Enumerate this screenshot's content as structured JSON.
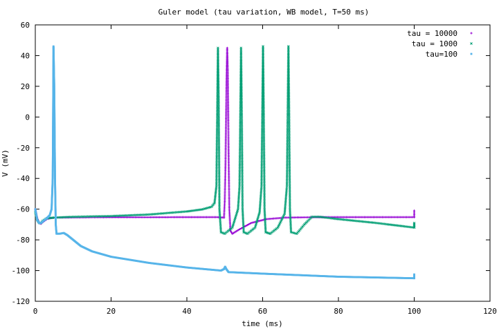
{
  "chart_data": {
    "type": "scatter",
    "title": "Guler model (tau variation, WB model, T=50 ms)",
    "xlabel": "time (ms)",
    "ylabel": "V (mV)",
    "xlim": [
      0,
      120
    ],
    "ylim": [
      -120,
      60
    ],
    "xticks": [
      0,
      20,
      40,
      60,
      80,
      100,
      120
    ],
    "yticks": [
      -120,
      -100,
      -80,
      -60,
      -40,
      -20,
      0,
      20,
      40,
      60
    ],
    "grid": false,
    "legend_position": "top-right",
    "series": [
      {
        "name": "tau = 10000",
        "color": "#9400d3",
        "marker": "plus",
        "segments": [
          [
            [
              0,
              -60
            ],
            [
              0.5,
              -66
            ],
            [
              1,
              -69
            ],
            [
              1.5,
              -69.5
            ],
            [
              2,
              -68.5
            ],
            [
              3,
              -66.5
            ],
            [
              4,
              -65.8
            ],
            [
              6,
              -65.5
            ],
            [
              10,
              -65.4
            ],
            [
              20,
              -65.3
            ],
            [
              30,
              -65.3
            ],
            [
              40,
              -65.2
            ],
            [
              48,
              -65.2
            ],
            [
              49.8,
              -65.5
            ]
          ],
          [
            [
              49.8,
              -65.5
            ],
            [
              50.0,
              -55
            ],
            [
              50.2,
              -30
            ],
            [
              50.35,
              0
            ],
            [
              50.5,
              30
            ],
            [
              50.65,
              45
            ],
            [
              50.8,
              30
            ],
            [
              51.0,
              -20
            ],
            [
              51.2,
              -60
            ],
            [
              51.5,
              -74
            ],
            [
              52,
              -76
            ],
            [
              54,
              -73
            ],
            [
              57,
              -69
            ],
            [
              61,
              -66.5
            ],
            [
              66,
              -65.5
            ],
            [
              75,
              -65.2
            ],
            [
              90,
              -65.2
            ],
            [
              100,
              -65.2
            ]
          ],
          [
            [
              100,
              -65.2
            ],
            [
              100,
              -61
            ]
          ]
        ]
      },
      {
        "name": "tau = 1000",
        "color": "#009e73",
        "marker": "cross",
        "segments": [
          [
            [
              0,
              -62
            ],
            [
              0.5,
              -67
            ],
            [
              1,
              -69
            ],
            [
              1.5,
              -69
            ],
            [
              2,
              -67.5
            ],
            [
              3,
              -66
            ],
            [
              5,
              -65.5
            ],
            [
              10,
              -65
            ],
            [
              20,
              -64.5
            ],
            [
              30,
              -63.5
            ],
            [
              40,
              -61.5
            ],
            [
              44,
              -60.2
            ],
            [
              46.5,
              -58.5
            ],
            [
              47.3,
              -56
            ],
            [
              47.8,
              -45
            ],
            [
              48,
              0
            ],
            [
              48.2,
              45
            ],
            [
              48.4,
              10
            ],
            [
              48.6,
              -60
            ],
            [
              49,
              -75
            ],
            [
              50,
              -76
            ],
            [
              52,
              -72
            ],
            [
              53.5,
              -60
            ],
            [
              53.9,
              -45
            ],
            [
              54.1,
              0
            ],
            [
              54.3,
              45
            ],
            [
              54.5,
              0
            ],
            [
              54.7,
              -60
            ],
            [
              55,
              -75
            ],
            [
              56,
              -76
            ],
            [
              58,
              -72
            ],
            [
              59.2,
              -62
            ],
            [
              59.7,
              -45
            ],
            [
              59.9,
              0
            ],
            [
              60.1,
              46
            ],
            [
              60.3,
              0
            ],
            [
              60.5,
              -60
            ],
            [
              60.8,
              -75
            ],
            [
              62,
              -76
            ],
            [
              64,
              -72
            ],
            [
              65.8,
              -63
            ],
            [
              66.4,
              -45
            ],
            [
              66.6,
              0
            ],
            [
              66.8,
              46
            ],
            [
              67,
              0
            ],
            [
              67.2,
              -60
            ],
            [
              67.5,
              -75
            ],
            [
              69,
              -76
            ],
            [
              71,
              -70
            ],
            [
              73,
              -65
            ],
            [
              75,
              -65
            ],
            [
              80,
              -66.5
            ],
            [
              90,
              -69
            ],
            [
              100,
              -72
            ]
          ],
          [
            [
              100,
              -72
            ],
            [
              100,
              -69
            ]
          ]
        ]
      },
      {
        "name": "tau=100",
        "color": "#56b4e9",
        "marker": "square",
        "segments": [
          [
            [
              0,
              -60
            ],
            [
              0.5,
              -67
            ],
            [
              1,
              -69
            ],
            [
              1.5,
              -69
            ],
            [
              2,
              -68
            ],
            [
              3,
              -66
            ],
            [
              3.8,
              -64
            ],
            [
              4.3,
              -60
            ],
            [
              4.6,
              -40
            ],
            [
              4.7,
              0
            ],
            [
              4.8,
              46
            ],
            [
              5,
              20
            ],
            [
              5.2,
              -40
            ],
            [
              5.4,
              -70
            ],
            [
              5.6,
              -76
            ],
            [
              6.5,
              -76
            ],
            [
              7.5,
              -75.5
            ],
            [
              8.5,
              -77
            ],
            [
              10,
              -80
            ],
            [
              12,
              -84
            ],
            [
              15,
              -87.5
            ],
            [
              20,
              -91
            ],
            [
              30,
              -95
            ],
            [
              40,
              -98
            ],
            [
              49,
              -100
            ],
            [
              49.8,
              -99
            ],
            [
              50.1,
              -97.5
            ],
            [
              50.4,
              -99
            ],
            [
              51,
              -101
            ],
            [
              60,
              -102
            ],
            [
              70,
              -103
            ],
            [
              80,
              -104
            ],
            [
              90,
              -104.5
            ],
            [
              100,
              -105
            ]
          ],
          [
            [
              100,
              -105
            ],
            [
              100,
              -102.5
            ]
          ]
        ]
      }
    ]
  }
}
